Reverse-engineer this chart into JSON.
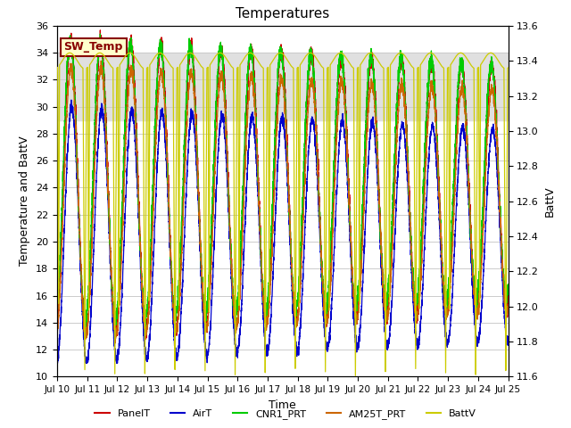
{
  "title": "Temperatures",
  "xlabel": "Time",
  "ylabel_left": "Temperature and BattV",
  "ylabel_right": "BattV",
  "xlim": [
    0,
    15
  ],
  "ylim_left": [
    10,
    36
  ],
  "ylim_right": [
    11.6,
    13.6
  ],
  "xtick_labels": [
    "Jul 10",
    "Jul 11",
    "Jul 12",
    "Jul 13",
    "Jul 14",
    "Jul 15",
    "Jul 16",
    "Jul 17",
    "Jul 18",
    "Jul 19",
    "Jul 20",
    "Jul 21",
    "Jul 22",
    "Jul 23",
    "Jul 24",
    "Jul 25"
  ],
  "colors": {
    "PanelT": "#cc0000",
    "AirT": "#0000cc",
    "CNR1_PRT": "#00cc00",
    "AM25T_PRT": "#cc6600",
    "BattV": "#cccc00"
  },
  "annotation_text": "SW_Temp",
  "annotation_bg": "#ffffcc",
  "annotation_fg": "#880000",
  "annotation_edge": "#880000",
  "grid_color": "#cccccc",
  "band_color": "#e0e0e0",
  "band_ymin": 29.0,
  "band_ymax": 34.0
}
